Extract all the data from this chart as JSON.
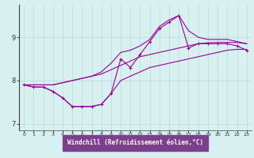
{
  "xlabel": "Windchill (Refroidissement éolien,°C)",
  "background_color": "#d8f0f0",
  "line_color": "#990099",
  "xlabel_bg": "#7b3f8c",
  "xlabel_fg": "#ffffff",
  "hours": [
    0,
    1,
    2,
    3,
    4,
    5,
    6,
    7,
    8,
    9,
    10,
    11,
    12,
    13,
    14,
    15,
    16,
    17,
    18,
    19,
    20,
    21,
    22,
    23
  ],
  "windchill": [
    7.9,
    7.85,
    7.85,
    7.75,
    7.6,
    7.4,
    7.4,
    7.4,
    7.45,
    7.7,
    8.5,
    8.3,
    8.6,
    8.9,
    9.2,
    9.35,
    9.5,
    8.75,
    8.85,
    8.85,
    8.85,
    8.85,
    8.8,
    8.7
  ],
  "temp_upper": [
    7.9,
    7.9,
    7.9,
    7.9,
    7.95,
    8.0,
    8.05,
    8.1,
    8.2,
    8.4,
    8.65,
    8.7,
    8.8,
    8.95,
    9.25,
    9.4,
    9.5,
    9.15,
    9.0,
    8.95,
    8.95,
    8.95,
    8.9,
    8.85
  ],
  "temp_mid": [
    7.9,
    7.9,
    7.9,
    7.9,
    7.95,
    8.0,
    8.05,
    8.1,
    8.15,
    8.25,
    8.35,
    8.45,
    8.55,
    8.6,
    8.65,
    8.7,
    8.75,
    8.8,
    8.85,
    8.87,
    8.88,
    8.88,
    8.88,
    8.85
  ],
  "temp_lower": [
    7.9,
    7.85,
    7.85,
    7.75,
    7.6,
    7.4,
    7.4,
    7.4,
    7.45,
    7.7,
    8.0,
    8.1,
    8.2,
    8.3,
    8.35,
    8.4,
    8.45,
    8.5,
    8.55,
    8.6,
    8.65,
    8.7,
    8.72,
    8.72
  ],
  "ylim": [
    6.85,
    9.75
  ],
  "yticks": [
    7,
    8,
    9
  ],
  "xticks": [
    0,
    1,
    2,
    3,
    4,
    5,
    6,
    7,
    8,
    9,
    10,
    11,
    12,
    13,
    14,
    15,
    16,
    17,
    18,
    19,
    20,
    21,
    22,
    23
  ]
}
